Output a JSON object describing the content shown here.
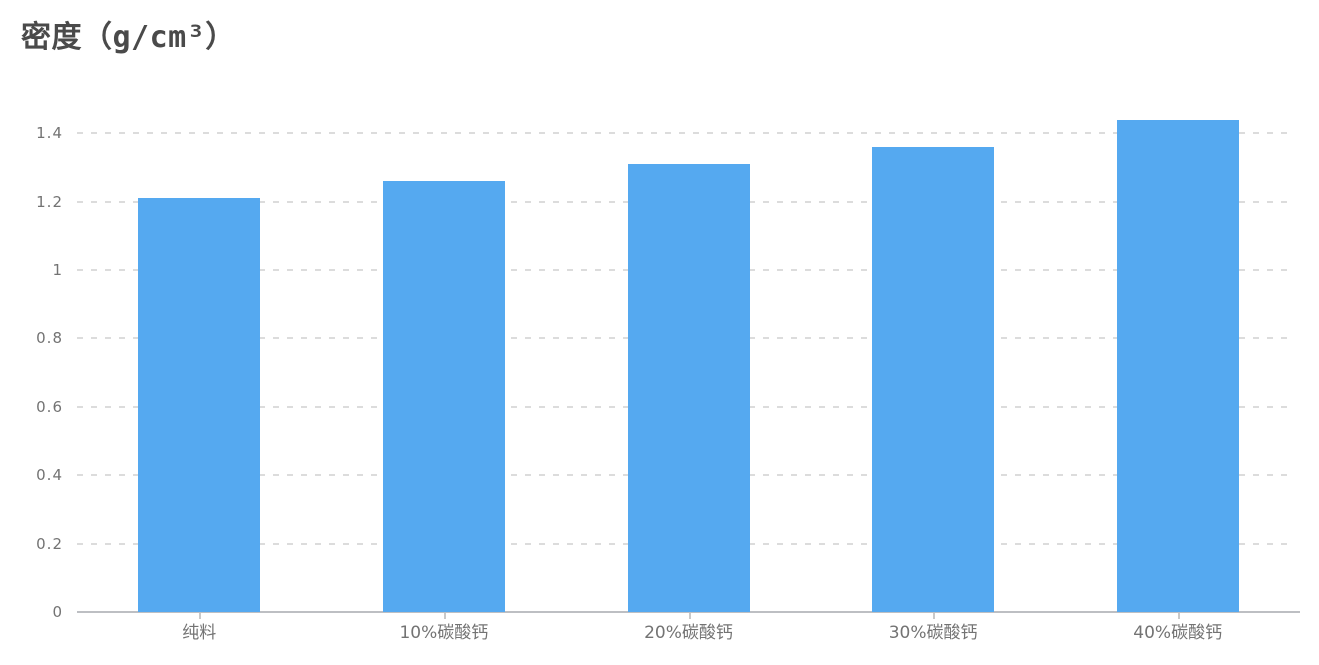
{
  "chart_data": {
    "type": "bar",
    "title": "密度（g/cm³）",
    "categories": [
      "纯料",
      "10%碳酸钙",
      "20%碳酸钙",
      "30%碳酸钙",
      "40%碳酸钙"
    ],
    "values": [
      1.21,
      1.26,
      1.31,
      1.36,
      1.44
    ],
    "xlabel": "",
    "ylabel": "密度（g/cm³）",
    "ylim": [
      0,
      1.45
    ],
    "yticks": [
      0,
      0.2,
      0.4,
      0.6,
      0.8,
      1,
      1.2,
      1.4
    ],
    "ytick_labels": [
      "0",
      "0.2",
      "0.4",
      "0.6",
      "0.8",
      "1",
      "1.2",
      "1.4"
    ],
    "grid": "horizontal dashed gridlines",
    "legend_position": "none",
    "bar_width_fraction": 0.5,
    "colors": {
      "bar": "#55A9F0",
      "grid_line": "#DCDCDC",
      "axis_line": "#BDBFC3",
      "tick_mark": "#C9C9C9",
      "title_text": "#4A4A4A",
      "axis_label_text": "#737373",
      "background": "#FFFFFF"
    }
  }
}
